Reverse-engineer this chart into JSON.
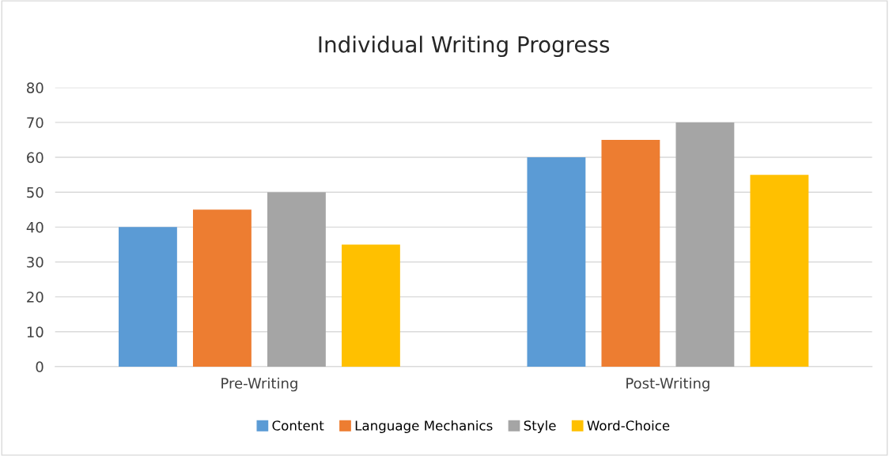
{
  "chart_data": {
    "type": "bar",
    "title": "Individual Writing Progress",
    "categories": [
      "Pre-Writing",
      "Post-Writing"
    ],
    "series": [
      {
        "name": "Content",
        "color": "#5b9bd5",
        "values": [
          40,
          60
        ]
      },
      {
        "name": "Language Mechanics",
        "color": "#ed7d31",
        "values": [
          45,
          65
        ]
      },
      {
        "name": "Style",
        "color": "#a5a5a5",
        "values": [
          50,
          70
        ]
      },
      {
        "name": "Word-Choice",
        "color": "#ffc000",
        "values": [
          35,
          55
        ]
      }
    ],
    "ylim": [
      0,
      80
    ],
    "yticks": [
      0,
      10,
      20,
      30,
      40,
      50,
      60,
      70,
      80
    ],
    "grid": "y",
    "legend": "bottom"
  }
}
